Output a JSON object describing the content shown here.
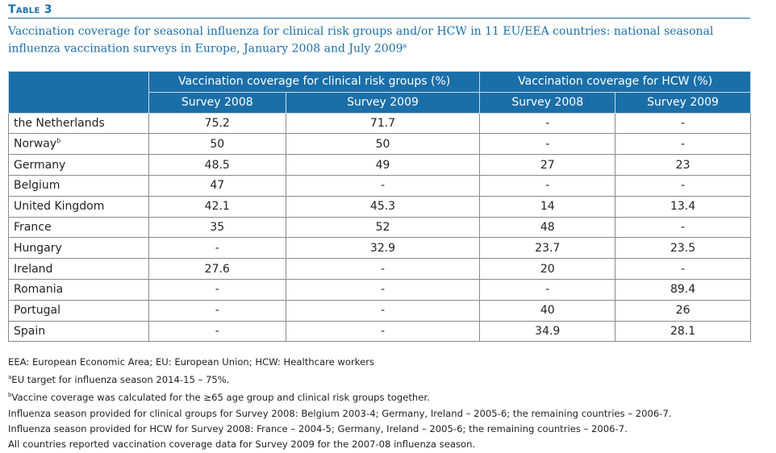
{
  "table_label": "Table 3",
  "caption": {
    "text": "Vaccination coverage for seasonal influenza for clinical risk groups and/or HCW in 11 EU/EEA countries: national seasonal influenza vaccination surveys in Europe, January 2008 and July 2009",
    "footnote_mark": "a"
  },
  "header": {
    "group1": "Vaccination coverage for clinical risk groups (%)",
    "group2": "Vaccination coverage for HCW (%)",
    "sub": [
      "Survey 2008",
      "Survey 2009",
      "Survey 2008",
      "Survey 2009"
    ]
  },
  "rows": [
    {
      "country": "the Netherlands",
      "mark": "",
      "values": [
        "75.2",
        "71.7",
        "-",
        "-"
      ]
    },
    {
      "country": "Norway",
      "mark": "b",
      "values": [
        "50",
        "50",
        "-",
        "-"
      ]
    },
    {
      "country": "Germany",
      "mark": "",
      "values": [
        "48.5",
        "49",
        "27",
        "23"
      ]
    },
    {
      "country": "Belgium",
      "mark": "",
      "values": [
        "47",
        "-",
        "-",
        "-"
      ]
    },
    {
      "country": "United Kingdom",
      "mark": "",
      "values": [
        "42.1",
        "45.3",
        "14",
        "13.4"
      ]
    },
    {
      "country": "France",
      "mark": "",
      "values": [
        "35",
        "52",
        "48",
        "-"
      ]
    },
    {
      "country": "Hungary",
      "mark": "",
      "values": [
        "-",
        "32.9",
        "23.7",
        "23.5"
      ]
    },
    {
      "country": "Ireland",
      "mark": "",
      "values": [
        "27.6",
        "-",
        "20",
        "-"
      ]
    },
    {
      "country": "Romania",
      "mark": "",
      "values": [
        "-",
        "-",
        "-",
        "89.4"
      ]
    },
    {
      "country": "Portugal",
      "mark": "",
      "values": [
        "-",
        "-",
        "40",
        "26"
      ]
    },
    {
      "country": "Spain",
      "mark": "",
      "values": [
        "-",
        "-",
        "34.9",
        "28.1"
      ]
    }
  ],
  "notes": {
    "abbrev": "EEA: European Economic Area; EU: European Union; HCW: Healthcare workers",
    "note_a_mark": "a",
    "note_a": "EU target for influenza season 2014-15 – 75%.",
    "note_b_mark": "b",
    "note_b": "Vaccine coverage was calculated for the ≥65 age group and clinical risk groups together.",
    "season_clinical": "Influenza season provided for clinical groups for Survey 2008: Belgium 2003-4; Germany, Ireland – 2005-6; the remaining countries – 2006-7.",
    "season_hcw": "Influenza season provided for HCW for Survey 2008: France – 2004-5; Germany, Ireland – 2005-6; the remaining countries – 2006-7.",
    "survey2009": "All countries reported vaccination coverage data for Survey 2009 for the 2007-08 influenza season."
  }
}
